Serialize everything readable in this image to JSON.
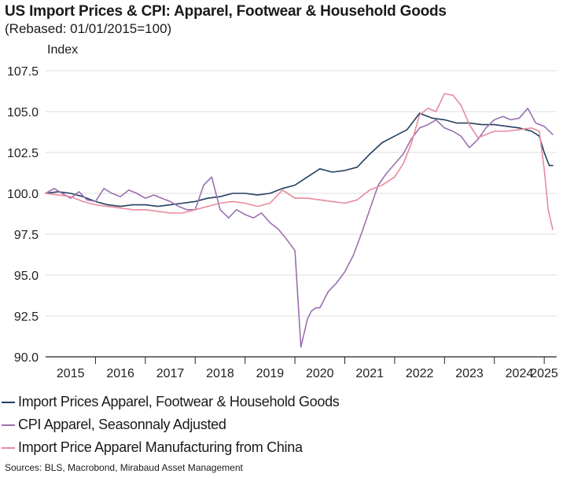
{
  "header": {
    "title": "US Import Prices & CPI: Apparel, Footwear & Household Goods",
    "subtitle": "(Rebased: 01/01/2015=100)"
  },
  "footer": {
    "source": "Sources: BLS, Macrobond, Mirabaud Asset Management"
  },
  "chart_data": {
    "type": "line",
    "title": "US Import Prices & CPI: Apparel, Footwear & Household Goods",
    "subtitle": "(Rebased: 01/01/2015=100)",
    "ylabel": "Index",
    "xlabel": "",
    "ylim": [
      90.0,
      107.5
    ],
    "xlim": [
      2015.0,
      2025.25
    ],
    "yticks": [
      "90.0",
      "92.5",
      "95.0",
      "97.5",
      "100.0",
      "102.5",
      "105.0",
      "107.5"
    ],
    "xticks": [
      "2015",
      "2016",
      "2017",
      "2018",
      "2019",
      "2020",
      "2021",
      "2022",
      "2023",
      "2024",
      "2025"
    ],
    "grid": true,
    "legend_position": "bottom",
    "series": [
      {
        "name": "Import Prices Apparel, Footwear & Household Goods",
        "color": "#23405e",
        "x": [
          2015.0,
          2015.25,
          2015.5,
          2015.75,
          2016.0,
          2016.25,
          2016.5,
          2016.75,
          2017.0,
          2017.25,
          2017.5,
          2017.75,
          2018.0,
          2018.25,
          2018.5,
          2018.75,
          2019.0,
          2019.25,
          2019.5,
          2019.75,
          2020.0,
          2020.25,
          2020.5,
          2020.75,
          2021.0,
          2021.25,
          2021.5,
          2021.75,
          2022.0,
          2022.25,
          2022.5,
          2022.75,
          2023.0,
          2023.25,
          2023.5,
          2023.75,
          2024.0,
          2024.25,
          2024.5,
          2024.75,
          2024.9,
          2025.0,
          2025.1,
          2025.17
        ],
        "y": [
          100.0,
          100.1,
          100.0,
          99.8,
          99.5,
          99.3,
          99.2,
          99.3,
          99.3,
          99.2,
          99.3,
          99.4,
          99.5,
          99.7,
          99.8,
          100.0,
          100.0,
          99.9,
          100.0,
          100.3,
          100.5,
          101.0,
          101.5,
          101.3,
          101.4,
          101.6,
          102.4,
          103.1,
          103.5,
          103.9,
          104.9,
          104.6,
          104.5,
          104.3,
          104.3,
          104.2,
          104.2,
          104.1,
          104.0,
          103.8,
          103.5,
          102.5,
          101.7,
          101.7
        ]
      },
      {
        "name": "CPI Apparel, Seasonnaly Adjusted",
        "color": "#9b6fb0",
        "x": [
          2015.0,
          2015.17,
          2015.33,
          2015.5,
          2015.67,
          2015.83,
          2016.0,
          2016.17,
          2016.33,
          2016.5,
          2016.67,
          2016.83,
          2017.0,
          2017.17,
          2017.33,
          2017.5,
          2017.67,
          2017.83,
          2018.0,
          2018.17,
          2018.33,
          2018.5,
          2018.67,
          2018.83,
          2019.0,
          2019.17,
          2019.33,
          2019.5,
          2019.67,
          2019.83,
          2020.0,
          2020.12,
          2020.25,
          2020.33,
          2020.42,
          2020.5,
          2020.67,
          2020.83,
          2021.0,
          2021.17,
          2021.33,
          2021.5,
          2021.67,
          2021.83,
          2022.0,
          2022.17,
          2022.33,
          2022.5,
          2022.67,
          2022.83,
          2023.0,
          2023.17,
          2023.33,
          2023.5,
          2023.67,
          2023.83,
          2024.0,
          2024.17,
          2024.33,
          2024.5,
          2024.67,
          2024.83,
          2025.0,
          2025.17
        ],
        "y": [
          100.0,
          100.3,
          100.0,
          99.7,
          100.1,
          99.6,
          99.5,
          100.3,
          100.0,
          99.8,
          100.2,
          100.0,
          99.7,
          99.9,
          99.7,
          99.5,
          99.2,
          99.0,
          99.0,
          100.5,
          101.0,
          99.0,
          98.5,
          99.0,
          98.7,
          98.5,
          98.8,
          98.2,
          97.8,
          97.2,
          96.5,
          90.6,
          92.3,
          92.8,
          93.0,
          93.0,
          94.0,
          94.5,
          95.2,
          96.2,
          97.5,
          99.0,
          100.5,
          101.2,
          101.8,
          102.4,
          103.3,
          104.0,
          104.2,
          104.5,
          104.0,
          103.8,
          103.5,
          102.8,
          103.3,
          104.0,
          104.5,
          104.7,
          104.5,
          104.6,
          105.2,
          104.3,
          104.1,
          103.6
        ]
      },
      {
        "name": "Import Price Apparel Manufacturing from China",
        "color": "#e88a9e",
        "x": [
          2015.0,
          2015.25,
          2015.5,
          2015.75,
          2016.0,
          2016.25,
          2016.5,
          2016.75,
          2017.0,
          2017.25,
          2017.5,
          2017.75,
          2018.0,
          2018.25,
          2018.5,
          2018.75,
          2019.0,
          2019.25,
          2019.5,
          2019.75,
          2020.0,
          2020.25,
          2020.5,
          2020.75,
          2021.0,
          2021.25,
          2021.5,
          2021.75,
          2022.0,
          2022.17,
          2022.33,
          2022.5,
          2022.67,
          2022.83,
          2023.0,
          2023.17,
          2023.33,
          2023.5,
          2023.67,
          2023.83,
          2024.0,
          2024.25,
          2024.5,
          2024.75,
          2024.9,
          2025.0,
          2025.08,
          2025.17
        ],
        "y": [
          100.0,
          99.9,
          99.8,
          99.5,
          99.3,
          99.2,
          99.1,
          99.0,
          99.0,
          98.9,
          98.8,
          98.8,
          99.0,
          99.2,
          99.4,
          99.5,
          99.4,
          99.2,
          99.4,
          100.2,
          99.7,
          99.7,
          99.6,
          99.5,
          99.4,
          99.6,
          100.2,
          100.5,
          101.0,
          101.8,
          103.0,
          104.8,
          105.2,
          105.0,
          106.1,
          106.0,
          105.4,
          104.2,
          103.4,
          103.6,
          103.8,
          103.8,
          103.9,
          104.0,
          103.8,
          101.5,
          99.0,
          97.8
        ]
      }
    ]
  }
}
